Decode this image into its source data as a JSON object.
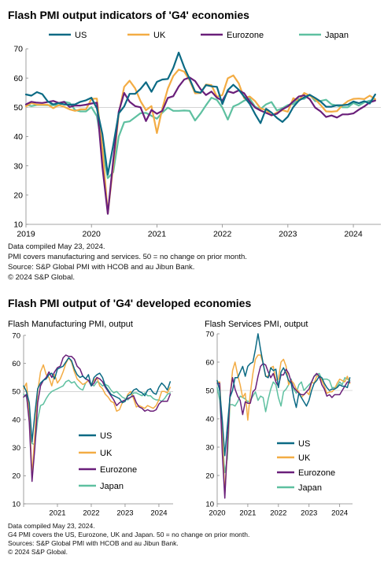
{
  "chart1_title": "Flash PMI output indicators of 'G4' economies",
  "chart1_notes": [
    "Data compiled May 23, 2024.",
    "PMI covers manufacturing and services. 50 = no change on prior month.",
    "Source: S&P Global PMI with HCOB and au Jibun Bank.",
    "© 2024 S&P Global."
  ],
  "section2_title": "Flash PMI output of 'G4' developed economies",
  "chart2_notes": [
    "Data compiled May 23, 2024.",
    "G4 PMI covers the US, Eurozone, UK and Japan. 50 = no change on prior month.",
    "Sources: S&P Global PMI with HCOB and au Jibun Bank.",
    "© 2024 S&P Global."
  ],
  "colors": {
    "US": "#0b6a84",
    "UK": "#f3ac44",
    "Eurozone": "#6a1f7a",
    "Japan": "#5ec0a0"
  },
  "chart_data": [
    {
      "type": "line",
      "title": "Flash PMI output indicators of 'G4' economies",
      "x": [
        2019.0,
        2019.083,
        2019.167,
        2019.25,
        2019.333,
        2019.417,
        2019.5,
        2019.583,
        2019.667,
        2019.75,
        2019.833,
        2019.917,
        2020.0,
        2020.083,
        2020.167,
        2020.25,
        2020.333,
        2020.417,
        2020.5,
        2020.583,
        2020.667,
        2020.75,
        2020.833,
        2020.917,
        2021.0,
        2021.083,
        2021.167,
        2021.25,
        2021.333,
        2021.417,
        2021.5,
        2021.583,
        2021.667,
        2021.75,
        2021.833,
        2021.917,
        2022.0,
        2022.083,
        2022.167,
        2022.25,
        2022.333,
        2022.417,
        2022.5,
        2022.583,
        2022.667,
        2022.75,
        2022.833,
        2022.917,
        2023.0,
        2023.083,
        2023.167,
        2023.25,
        2023.333,
        2023.417,
        2023.5,
        2023.583,
        2023.667,
        2023.75,
        2023.833,
        2023.917,
        2024.0,
        2024.083,
        2024.167,
        2024.25,
        2024.333
      ],
      "xticks": [
        "2019",
        "2020",
        "2021",
        "2022",
        "2023",
        "2024"
      ],
      "ylim": [
        10,
        70
      ],
      "yticks": [
        10,
        20,
        30,
        40,
        50,
        60,
        70
      ],
      "legend": [
        "US",
        "UK",
        "Eurozone",
        "Japan"
      ],
      "series": [
        {
          "name": "US",
          "values": [
            54.4,
            54.0,
            55.2,
            54.5,
            52.0,
            51.0,
            51.4,
            51.0,
            50.9,
            51.0,
            51.9,
            52.4,
            53.3,
            49.6,
            40.9,
            27.0,
            37.0,
            47.9,
            50.3,
            54.6,
            54.6,
            56.3,
            58.6,
            55.3,
            58.7,
            59.5,
            59.7,
            63.5,
            68.7,
            63.7,
            59.7,
            55.4,
            55.0,
            57.6,
            57.2,
            57.0,
            51.1,
            55.9,
            57.7,
            56.0,
            53.6,
            51.2,
            47.7,
            44.6,
            49.5,
            48.2,
            46.4,
            45.0,
            46.8,
            50.1,
            52.3,
            53.4,
            54.3,
            53.2,
            52.0,
            50.2,
            50.2,
            50.7,
            50.7,
            50.9,
            52.0,
            51.4,
            52.1,
            51.3,
            54.4
          ]
        },
        {
          "name": "UK",
          "values": [
            50.3,
            51.5,
            50.9,
            50.9,
            50.9,
            49.7,
            50.7,
            50.2,
            49.3,
            48.8,
            49.3,
            49.3,
            52.9,
            53.0,
            36.0,
            13.8,
            30.0,
            47.7,
            57.0,
            59.1,
            56.5,
            52.1,
            49.0,
            50.4,
            41.2,
            49.6,
            56.4,
            60.7,
            62.9,
            62.2,
            59.2,
            54.8,
            54.9,
            57.8,
            57.6,
            53.6,
            54.2,
            59.9,
            60.9,
            58.2,
            53.1,
            53.7,
            52.1,
            49.6,
            49.1,
            47.2,
            48.2,
            49.0,
            48.5,
            53.1,
            52.2,
            54.9,
            54.0,
            52.8,
            50.8,
            48.6,
            48.5,
            48.7,
            50.7,
            52.1,
            52.9,
            53.0,
            52.8,
            54.0,
            52.8
          ]
        },
        {
          "name": "Eurozone",
          "values": [
            51.0,
            51.9,
            51.6,
            51.5,
            51.8,
            52.2,
            51.5,
            51.9,
            50.1,
            50.6,
            50.6,
            50.9,
            51.3,
            51.6,
            29.7,
            13.6,
            31.9,
            48.5,
            54.9,
            51.9,
            50.4,
            50.0,
            45.3,
            49.1,
            47.8,
            48.8,
            53.2,
            53.8,
            57.1,
            59.5,
            60.2,
            59.0,
            56.2,
            54.2,
            55.4,
            53.3,
            52.3,
            55.5,
            54.9,
            55.8,
            54.8,
            52.0,
            49.9,
            48.9,
            48.1,
            47.3,
            47.8,
            49.3,
            50.3,
            52.0,
            53.7,
            54.1,
            52.8,
            49.9,
            48.6,
            46.7,
            47.2,
            46.5,
            47.6,
            47.6,
            47.9,
            49.2,
            50.3,
            51.7,
            52.3
          ]
        },
        {
          "name": "Japan",
          "values": [
            50.9,
            50.4,
            50.8,
            50.8,
            50.7,
            50.8,
            50.6,
            51.9,
            51.5,
            49.1,
            48.6,
            48.6,
            50.1,
            47.0,
            36.2,
            25.8,
            27.8,
            40.0,
            44.9,
            45.2,
            46.6,
            48.0,
            48.1,
            47.1,
            46.1,
            48.2,
            49.9,
            48.8,
            48.8,
            48.9,
            48.8,
            45.5,
            47.9,
            50.7,
            53.3,
            52.5,
            49.9,
            45.8,
            50.3,
            51.1,
            52.3,
            53.0,
            50.2,
            49.4,
            51.0,
            51.8,
            48.9,
            49.7,
            50.8,
            51.1,
            52.9,
            52.9,
            54.3,
            52.1,
            52.2,
            52.6,
            51.0,
            50.6,
            50.0,
            50.0,
            51.5,
            50.6,
            51.7,
            52.3,
            52.4
          ]
        }
      ]
    },
    {
      "type": "line",
      "title": "Flash Manufacturing PMI, output",
      "x": [
        2020.0,
        2020.083,
        2020.167,
        2020.25,
        2020.333,
        2020.417,
        2020.5,
        2020.583,
        2020.667,
        2020.75,
        2020.833,
        2020.917,
        2021.0,
        2021.083,
        2021.167,
        2021.25,
        2021.333,
        2021.417,
        2021.5,
        2021.583,
        2021.667,
        2021.75,
        2021.833,
        2021.917,
        2022.0,
        2022.083,
        2022.167,
        2022.25,
        2022.333,
        2022.417,
        2022.5,
        2022.583,
        2022.667,
        2022.75,
        2022.833,
        2022.917,
        2023.0,
        2023.083,
        2023.167,
        2023.25,
        2023.333,
        2023.417,
        2023.5,
        2023.583,
        2023.667,
        2023.75,
        2023.833,
        2023.917,
        2024.0,
        2024.083,
        2024.167,
        2024.25,
        2024.333
      ],
      "xticks": [
        "2021",
        "2022",
        "2023",
        "2024"
      ],
      "ylim": [
        10,
        70
      ],
      "yticks": [
        10,
        20,
        30,
        40,
        50,
        60,
        70
      ],
      "legend": [
        "US",
        "UK",
        "Eurozone",
        "Japan"
      ],
      "series": [
        {
          "name": "US",
          "values": [
            52.0,
            50.0,
            46.0,
            32.0,
            42.0,
            51.0,
            53.0,
            54.0,
            54.5,
            56.0,
            56.5,
            54.5,
            58.0,
            58.5,
            59.0,
            60.5,
            62.0,
            61.0,
            58.0,
            56.0,
            55.0,
            55.5,
            54.5,
            56.0,
            52.0,
            55.0,
            56.0,
            56.5,
            55.0,
            52.0,
            50.5,
            49.0,
            48.5,
            48.0,
            47.5,
            46.0,
            46.5,
            48.5,
            49.0,
            50.5,
            51.0,
            50.0,
            49.5,
            48.5,
            50.5,
            51.0,
            49.5,
            49.0,
            51.5,
            53.0,
            52.0,
            50.5,
            53.5
          ]
        },
        {
          "name": "UK",
          "values": [
            51.0,
            53.0,
            43.0,
            20.0,
            35.0,
            50.0,
            57.0,
            59.5,
            56.0,
            55.0,
            52.0,
            56.0,
            53.0,
            54.5,
            57.0,
            60.0,
            62.0,
            60.5,
            57.0,
            54.5,
            53.5,
            52.5,
            53.0,
            54.0,
            52.5,
            54.0,
            55.0,
            52.0,
            51.0,
            49.0,
            48.0,
            46.5,
            46.0,
            43.0,
            43.5,
            46.0,
            46.5,
            49.0,
            50.0,
            47.5,
            44.5,
            45.0,
            44.5,
            44.0,
            45.0,
            44.5,
            44.0,
            45.0,
            47.0,
            50.0,
            50.0,
            49.5,
            51.5
          ]
        },
        {
          "name": "Eurozone",
          "values": [
            48.0,
            49.0,
            39.0,
            18.0,
            30.0,
            46.0,
            52.0,
            54.0,
            55.0,
            57.0,
            55.0,
            57.0,
            58.5,
            59.0,
            62.0,
            63.0,
            62.5,
            62.5,
            61.5,
            59.0,
            58.0,
            55.5,
            54.5,
            54.0,
            52.0,
            53.0,
            55.0,
            54.5,
            53.5,
            51.5,
            50.0,
            48.5,
            47.0,
            45.0,
            46.0,
            46.5,
            47.0,
            47.5,
            48.0,
            48.5,
            46.0,
            44.5,
            44.0,
            43.0,
            43.5,
            43.0,
            43.0,
            43.5,
            45.5,
            46.5,
            46.5,
            46.5,
            49.0
          ]
        },
        {
          "name": "Japan",
          "values": [
            49.0,
            48.0,
            43.0,
            31.5,
            31.0,
            40.0,
            45.0,
            45.5,
            47.5,
            49.0,
            50.0,
            50.5,
            51.0,
            51.5,
            52.0,
            53.5,
            54.0,
            53.0,
            53.5,
            52.0,
            51.0,
            50.5,
            53.0,
            54.0,
            52.5,
            52.0,
            53.5,
            53.0,
            52.0,
            52.5,
            52.0,
            50.5,
            49.5,
            50.0,
            49.0,
            48.0,
            47.5,
            47.0,
            48.0,
            49.5,
            49.5,
            49.0,
            48.5,
            49.5,
            48.5,
            48.5,
            47.5,
            47.0,
            47.0,
            46.5,
            47.5,
            49.0,
            49.5
          ]
        }
      ]
    },
    {
      "type": "line",
      "title": "Flash Services PMI, output",
      "x": [
        2020.0,
        2020.083,
        2020.167,
        2020.25,
        2020.333,
        2020.417,
        2020.5,
        2020.583,
        2020.667,
        2020.75,
        2020.833,
        2020.917,
        2021.0,
        2021.083,
        2021.167,
        2021.25,
        2021.333,
        2021.417,
        2021.5,
        2021.583,
        2021.667,
        2021.75,
        2021.833,
        2021.917,
        2022.0,
        2022.083,
        2022.167,
        2022.25,
        2022.333,
        2022.417,
        2022.5,
        2022.583,
        2022.667,
        2022.75,
        2022.833,
        2022.917,
        2023.0,
        2023.083,
        2023.167,
        2023.25,
        2023.333,
        2023.417,
        2023.5,
        2023.583,
        2023.667,
        2023.75,
        2023.833,
        2023.917,
        2024.0,
        2024.083,
        2024.167,
        2024.25,
        2024.333
      ],
      "xticks": [
        "2020",
        "2021",
        "2022",
        "2023",
        "2024"
      ],
      "ylim": [
        10,
        70
      ],
      "yticks": [
        10,
        20,
        30,
        40,
        50,
        60,
        70
      ],
      "legend": [
        "US",
        "UK",
        "Eurozone",
        "Japan"
      ],
      "series": [
        {
          "name": "US",
          "values": [
            53.5,
            50.0,
            39.5,
            27.0,
            37.5,
            47.5,
            50.0,
            54.5,
            54.5,
            56.5,
            58.5,
            55.0,
            58.5,
            59.5,
            60.0,
            64.5,
            70.0,
            64.5,
            59.5,
            55.0,
            54.5,
            58.0,
            57.0,
            57.5,
            51.0,
            56.5,
            58.0,
            56.0,
            53.5,
            52.5,
            47.5,
            44.0,
            49.0,
            47.5,
            46.0,
            44.5,
            46.5,
            50.0,
            52.5,
            53.5,
            55.0,
            54.5,
            52.5,
            51.0,
            50.0,
            50.5,
            50.5,
            51.0,
            52.0,
            51.5,
            51.5,
            51.0,
            54.5
          ]
        },
        {
          "name": "UK",
          "values": [
            53.0,
            53.0,
            35.0,
            13.5,
            29.0,
            47.0,
            57.0,
            60.0,
            55.5,
            52.0,
            47.5,
            49.0,
            39.5,
            49.0,
            56.0,
            61.0,
            62.5,
            62.5,
            59.5,
            55.0,
            55.0,
            58.0,
            58.5,
            53.5,
            54.0,
            60.0,
            61.0,
            58.5,
            52.0,
            53.5,
            52.5,
            50.5,
            49.5,
            47.5,
            48.5,
            49.5,
            48.5,
            53.0,
            52.5,
            55.0,
            55.0,
            53.5,
            51.5,
            49.0,
            49.5,
            49.5,
            50.5,
            52.5,
            54.0,
            53.5,
            53.0,
            55.0,
            52.5
          ]
        },
        {
          "name": "Eurozone",
          "values": [
            52.5,
            52.5,
            28.0,
            12.0,
            31.0,
            48.0,
            54.5,
            50.5,
            48.0,
            46.5,
            41.5,
            46.0,
            45.5,
            45.5,
            49.5,
            50.5,
            55.0,
            58.5,
            59.5,
            59.0,
            56.5,
            54.5,
            56.0,
            53.0,
            51.5,
            55.5,
            55.5,
            57.5,
            56.0,
            53.0,
            51.0,
            50.0,
            49.0,
            48.5,
            48.5,
            49.5,
            50.5,
            53.0,
            55.0,
            56.0,
            55.0,
            52.0,
            50.5,
            48.0,
            48.5,
            47.5,
            48.5,
            48.5,
            48.5,
            50.0,
            51.5,
            53.0,
            53.0
          ]
        },
        {
          "name": "Japan",
          "values": [
            51.0,
            46.5,
            33.0,
            21.0,
            26.0,
            45.0,
            45.0,
            44.5,
            46.0,
            48.0,
            47.5,
            47.0,
            46.0,
            46.5,
            48.0,
            49.5,
            46.5,
            48.0,
            47.5,
            42.5,
            47.0,
            50.5,
            53.0,
            52.0,
            47.5,
            44.5,
            49.5,
            50.5,
            52.0,
            54.0,
            50.5,
            49.0,
            52.0,
            53.0,
            50.0,
            51.0,
            52.0,
            53.0,
            55.0,
            55.5,
            56.0,
            54.0,
            54.0,
            54.0,
            53.5,
            51.0,
            51.0,
            51.5,
            53.0,
            52.0,
            54.5,
            54.0,
            53.5
          ]
        }
      ]
    }
  ]
}
